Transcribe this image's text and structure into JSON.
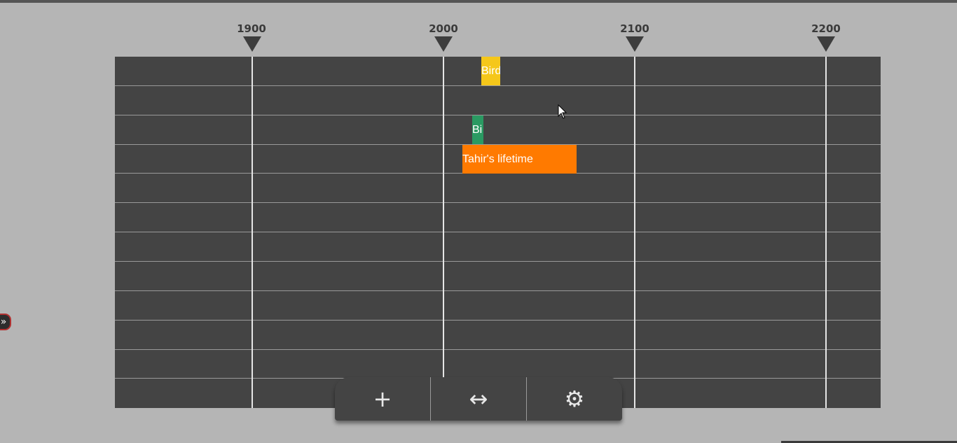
{
  "axis": {
    "labels": [
      "1900",
      "2000",
      "2100",
      "2200"
    ]
  },
  "events": [
    {
      "label": "Bird",
      "color": "#f5c71a",
      "start_year": 2020,
      "end_year": 2030,
      "row": 1
    },
    {
      "label": "Bi",
      "color": "#2a9a62",
      "start_year": 2015,
      "end_year": 2021,
      "row": 3
    },
    {
      "label": "Tahir's lifetime",
      "color": "#ff7a00",
      "start_year": 2010,
      "end_year": 2070,
      "row": 4
    }
  ],
  "toolbar": {
    "add_icon": "plus-icon",
    "add_glyph": "+",
    "scale_icon": "horizontal-arrows-icon",
    "scale_glyph": "↔",
    "settings_icon": "gear-icon",
    "settings_glyph": "⚙"
  },
  "sidebar_toggle": {
    "icon": "double-chevron-right-icon",
    "glyph": "»"
  },
  "colors": {
    "background": "#b5b5b5",
    "grid": "#444444",
    "axis_marker": "#3d3d3d"
  }
}
